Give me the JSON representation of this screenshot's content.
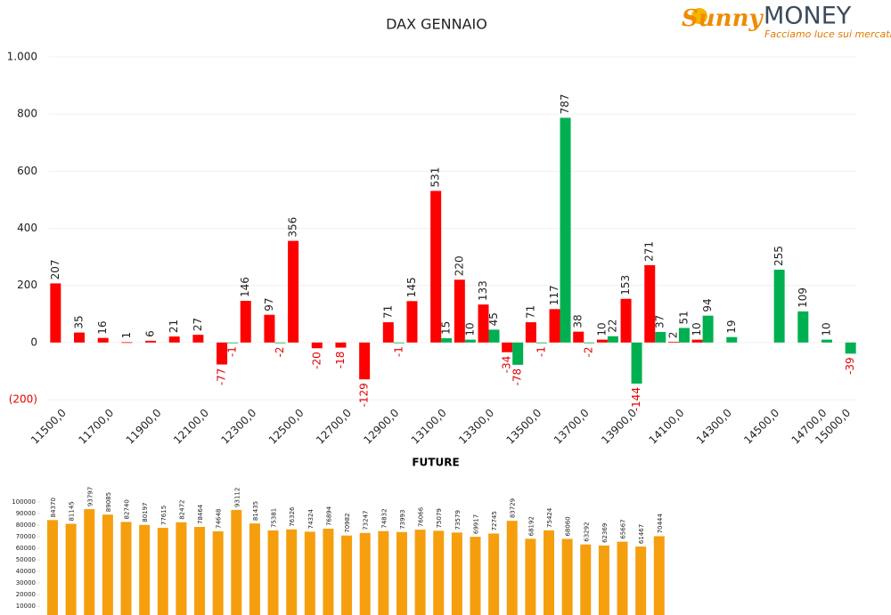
{
  "logo": {
    "name": "Sunny",
    "brand": "MONEY",
    "tagline": "Facciamo luce sui mercati"
  },
  "chart_data": [
    {
      "type": "bar",
      "title": "DAX GENNAIO",
      "categories": [
        "11500,0",
        null,
        "11700,0",
        null,
        "11900,0",
        null,
        "12100,0",
        null,
        "12300,0",
        null,
        "12500,0",
        null,
        "12700,0",
        null,
        "12900,0",
        null,
        "13100,0",
        null,
        "13300,0",
        null,
        "13500,0",
        null,
        "13700,0",
        null,
        "13900,0",
        null,
        "14100,0",
        null,
        "14300,0",
        null,
        "14500,0",
        null,
        "14700,0",
        "15000,0"
      ],
      "series": [
        {
          "color": "#ff0000",
          "values": [
            207,
            35,
            16,
            1,
            6,
            21,
            27,
            -77,
            146,
            97,
            356,
            -20,
            -18,
            -129,
            71,
            145,
            531,
            220,
            133,
            -34,
            71,
            117,
            38,
            10,
            153,
            271,
            2,
            10,
            null,
            null,
            null,
            null,
            null,
            null
          ]
        },
        {
          "color": "#00b050",
          "values": [
            null,
            null,
            null,
            null,
            null,
            null,
            null,
            -1,
            null,
            -2,
            null,
            null,
            null,
            null,
            -1,
            null,
            15,
            10,
            45,
            -78,
            -1,
            787,
            -2,
            22,
            -144,
            37,
            51,
            94,
            19,
            null,
            255,
            109,
            10,
            -39
          ]
        }
      ],
      "ylim": [
        -200,
        1000
      ],
      "yticks": [
        {
          "value": 1000,
          "label": "1.000"
        },
        800,
        600,
        400,
        200,
        0,
        {
          "value": -200,
          "label": "(200)"
        }
      ],
      "grid": true
    },
    {
      "type": "bar",
      "title": "FUTURE",
      "color": "#f59f0f",
      "values": [
        84370,
        81145,
        93797,
        89085,
        82740,
        80197,
        77615,
        82472,
        78464,
        74648,
        93112,
        81435,
        75381,
        76326,
        74324,
        76894,
        70982,
        73247,
        74832,
        73993,
        76066,
        75079,
        73579,
        69917,
        72745,
        83729,
        68192,
        75424,
        68060,
        63292,
        62369,
        65667,
        61467,
        70444
      ],
      "ylim": [
        0,
        100000
      ],
      "yticks": [
        10000,
        20000,
        30000,
        40000,
        50000,
        60000,
        70000,
        80000,
        90000,
        100000
      ]
    }
  ]
}
